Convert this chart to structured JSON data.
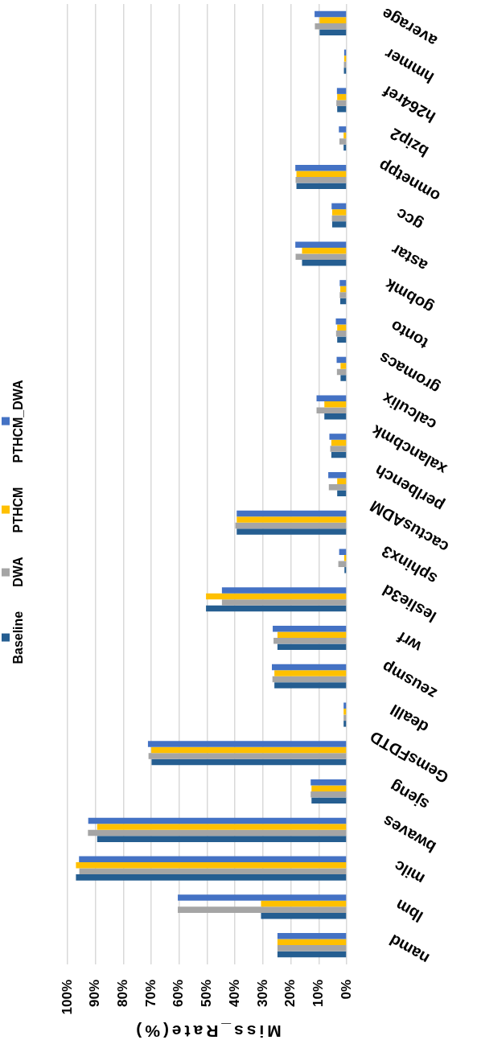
{
  "chart_data": {
    "type": "bar",
    "orientation": "horizontal",
    "categories": [
      "average",
      "hmmer",
      "h264ref",
      "bzip2",
      "omnetpp",
      "gcc",
      "astar",
      "gobmk",
      "tonto",
      "gromacs",
      "calculix",
      "xalancbmk",
      "perlbench",
      "cactusADM",
      "sphinx3",
      "leslie3d",
      "wrf",
      "zeusmp",
      "dealII",
      "GemsFDTD",
      "sjeng",
      "bwaves",
      "milc",
      "lbm",
      "namd"
    ],
    "series": [
      {
        "name": "PTHCM_DWA",
        "color": "#4472c4",
        "values": [
          11.5,
          0.9,
          3.5,
          2.8,
          18.4,
          5.4,
          18.4,
          2.5,
          3.9,
          3.6,
          10.8,
          6.2,
          6.6,
          39.4,
          2.7,
          44.7,
          26.5,
          26.8,
          1.1,
          71.2,
          12.9,
          92.6,
          95.9,
          60.5,
          24.8
        ]
      },
      {
        "name": "PTHCM",
        "color": "#ffc000",
        "values": [
          9.7,
          0.9,
          3.4,
          1.1,
          18.0,
          5.2,
          16.0,
          2.3,
          3.4,
          2.2,
          8.0,
          5.5,
          3.4,
          39.4,
          0.9,
          50.4,
          24.8,
          25.9,
          1.1,
          70.0,
          12.6,
          89.4,
          97.0,
          30.7,
          24.8
        ]
      },
      {
        "name": "DWA",
        "color": "#a5a5a5",
        "values": [
          11.4,
          1.0,
          3.7,
          2.6,
          18.3,
          5.3,
          18.3,
          2.5,
          3.8,
          3.5,
          10.8,
          5.9,
          6.4,
          39.9,
          3.0,
          44.7,
          26.2,
          26.6,
          1.1,
          71.0,
          12.9,
          92.7,
          95.8,
          60.5,
          24.8
        ]
      },
      {
        "name": "Baseline",
        "color": "#255e91",
        "values": [
          9.7,
          1.0,
          3.4,
          1.1,
          18.0,
          5.2,
          16.0,
          2.3,
          3.4,
          2.2,
          8.0,
          5.5,
          3.4,
          39.4,
          0.8,
          50.4,
          24.8,
          25.9,
          1.1,
          69.9,
          12.6,
          89.4,
          97.0,
          30.7,
          24.8
        ]
      }
    ],
    "xlabel": "Miss_Rate(%)",
    "xlim": [
      100,
      0
    ],
    "xticks": [
      {
        "value": 100,
        "label": "100%"
      },
      {
        "value": 90,
        "label": "90%"
      },
      {
        "value": 80,
        "label": "80%"
      },
      {
        "value": 70,
        "label": "70%"
      },
      {
        "value": 60,
        "label": "60%"
      },
      {
        "value": 50,
        "label": "50%"
      },
      {
        "value": 40,
        "label": "40%"
      },
      {
        "value": 30,
        "label": "30%"
      },
      {
        "value": 20,
        "label": "20%"
      },
      {
        "value": 10,
        "label": "10%"
      },
      {
        "value": 0,
        "label": "0%"
      }
    ],
    "grid": "x",
    "legend": "left"
  }
}
